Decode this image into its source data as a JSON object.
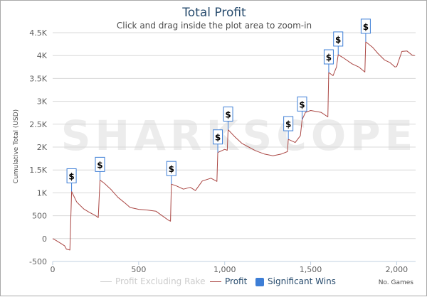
{
  "chart_data": {
    "type": "line",
    "title": "Total Profit",
    "subtitle": "Click and drag inside the plot area to zoom-in",
    "ylabel": "Cumulative Total (USD)",
    "xlabel": "No. Games",
    "watermark": "SHARKSCOPE",
    "xlim": [
      0,
      2110
    ],
    "ylim": [
      -500,
      4500
    ],
    "x_ticks": [
      {
        "value": 0,
        "label": "0"
      },
      {
        "value": 500,
        "label": "500"
      },
      {
        "value": 1000,
        "label": "1,000"
      },
      {
        "value": 1500,
        "label": "1,500"
      },
      {
        "value": 2000,
        "label": "2,000"
      }
    ],
    "y_ticks": [
      {
        "value": -500,
        "label": "-500"
      },
      {
        "value": 0,
        "label": "0"
      },
      {
        "value": 500,
        "label": "500"
      },
      {
        "value": 1000,
        "label": "1K"
      },
      {
        "value": 1500,
        "label": "1.5K"
      },
      {
        "value": 2000,
        "label": "2K"
      },
      {
        "value": 2500,
        "label": "2.5K"
      },
      {
        "value": 3000,
        "label": "3K"
      },
      {
        "value": 3500,
        "label": "3.5K"
      },
      {
        "value": 4000,
        "label": "4K"
      },
      {
        "value": 4500,
        "label": "4.5K"
      }
    ],
    "grid": "horizontal",
    "legend_position": "bottom-center",
    "series": [
      {
        "name": "Profit",
        "color": "#aa4643",
        "points": [
          [
            0,
            0
          ],
          [
            20,
            -40
          ],
          [
            50,
            -110
          ],
          [
            70,
            -160
          ],
          [
            80,
            -230
          ],
          [
            100,
            -250
          ],
          [
            110,
            1030
          ],
          [
            140,
            800
          ],
          [
            180,
            650
          ],
          [
            210,
            580
          ],
          [
            250,
            500
          ],
          [
            265,
            460
          ],
          [
            275,
            1280
          ],
          [
            300,
            1210
          ],
          [
            340,
            1070
          ],
          [
            380,
            900
          ],
          [
            420,
            780
          ],
          [
            450,
            680
          ],
          [
            500,
            640
          ],
          [
            550,
            625
          ],
          [
            600,
            600
          ],
          [
            640,
            490
          ],
          [
            670,
            410
          ],
          [
            685,
            380
          ],
          [
            690,
            1190
          ],
          [
            720,
            1150
          ],
          [
            760,
            1080
          ],
          [
            800,
            1120
          ],
          [
            830,
            1050
          ],
          [
            870,
            1260
          ],
          [
            920,
            1320
          ],
          [
            955,
            1250
          ],
          [
            960,
            1880
          ],
          [
            1000,
            1950
          ],
          [
            1015,
            1930
          ],
          [
            1020,
            2380
          ],
          [
            1060,
            2220
          ],
          [
            1100,
            2080
          ],
          [
            1140,
            2000
          ],
          [
            1180,
            1920
          ],
          [
            1230,
            1850
          ],
          [
            1280,
            1810
          ],
          [
            1330,
            1850
          ],
          [
            1365,
            1900
          ],
          [
            1370,
            2170
          ],
          [
            1410,
            2100
          ],
          [
            1440,
            2250
          ],
          [
            1450,
            2600
          ],
          [
            1470,
            2760
          ],
          [
            1500,
            2800
          ],
          [
            1560,
            2760
          ],
          [
            1600,
            2660
          ],
          [
            1605,
            3630
          ],
          [
            1630,
            3560
          ],
          [
            1650,
            3750
          ],
          [
            1660,
            4020
          ],
          [
            1690,
            3950
          ],
          [
            1740,
            3820
          ],
          [
            1780,
            3750
          ],
          [
            1815,
            3640
          ],
          [
            1820,
            4300
          ],
          [
            1860,
            4180
          ],
          [
            1890,
            4050
          ],
          [
            1930,
            3900
          ],
          [
            1960,
            3850
          ],
          [
            1990,
            3750
          ],
          [
            2000,
            3760
          ],
          [
            2030,
            4090
          ],
          [
            2060,
            4100
          ],
          [
            2090,
            4010
          ],
          [
            2105,
            4000
          ]
        ]
      },
      {
        "name": "Profit Excluding Rake",
        "color": "#cccccc",
        "visible": false
      },
      {
        "name": "Significant Wins",
        "color": "#3d7ed6",
        "type": "flags",
        "label": "$",
        "points": [
          [
            110,
            1030
          ],
          [
            275,
            1280
          ],
          [
            690,
            1190
          ],
          [
            960,
            1880
          ],
          [
            1020,
            2380
          ],
          [
            1370,
            2170
          ],
          [
            1450,
            2600
          ],
          [
            1605,
            3630
          ],
          [
            1660,
            4020
          ],
          [
            1820,
            4300
          ]
        ]
      }
    ]
  },
  "legend": {
    "items": [
      {
        "label": "Profit Excluding Rake",
        "color": "#cccccc"
      },
      {
        "label": "Profit",
        "color": "#aa4643"
      },
      {
        "label": "Significant Wins",
        "color": "#3d7ed6"
      }
    ]
  }
}
